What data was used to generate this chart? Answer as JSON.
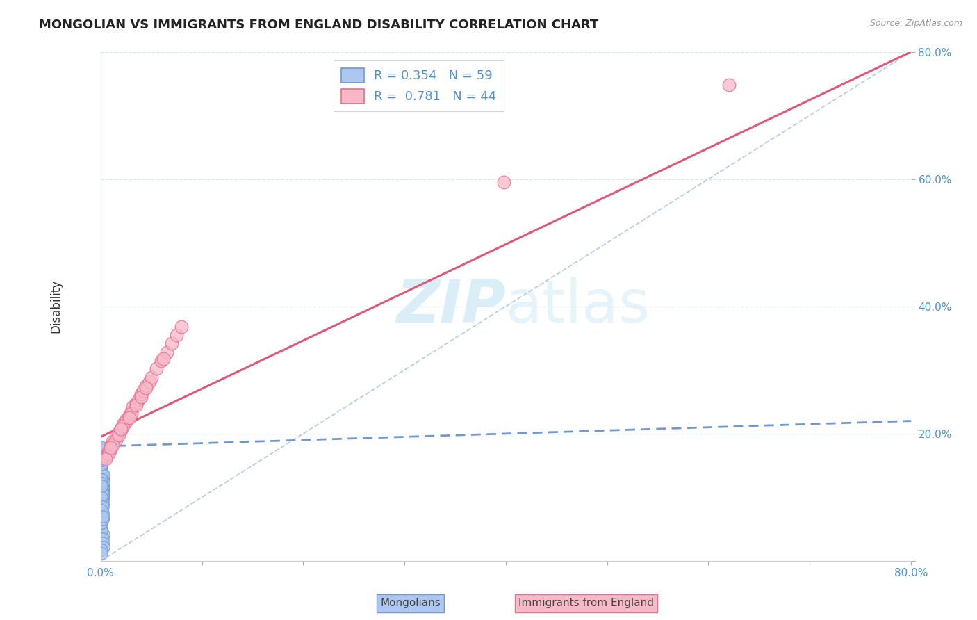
{
  "title": "MONGOLIAN VS IMMIGRANTS FROM ENGLAND DISABILITY CORRELATION CHART",
  "source": "Source: ZipAtlas.com",
  "ylabel": "Disability",
  "xlim": [
    0.0,
    0.8
  ],
  "ylim": [
    0.0,
    0.8
  ],
  "legend_r1": "R = 0.354   N = 59",
  "legend_r2": "R =  0.781   N = 44",
  "color_mongolian_face": "#adc8f0",
  "color_mongolian_edge": "#7098d0",
  "color_england_face": "#f8b8c8",
  "color_england_edge": "#e07090",
  "color_trend_mongolian": "#7098d0",
  "color_trend_england": "#e05878",
  "color_diagonal": "#b0c8e0",
  "color_grid": "#d8e8f0",
  "watermark_color": "#daeef8",
  "mongolian_x": [
    0.001,
    0.002,
    0.001,
    0.003,
    0.001,
    0.002,
    0.003,
    0.001,
    0.002,
    0.001,
    0.002,
    0.001,
    0.003,
    0.002,
    0.001,
    0.002,
    0.001,
    0.003,
    0.002,
    0.001,
    0.002,
    0.001,
    0.002,
    0.001,
    0.003,
    0.001,
    0.002,
    0.001,
    0.002,
    0.003,
    0.001,
    0.002,
    0.001,
    0.002,
    0.001,
    0.003,
    0.002,
    0.001,
    0.002,
    0.001,
    0.002,
    0.001,
    0.003,
    0.002,
    0.001,
    0.002,
    0.001,
    0.002,
    0.003,
    0.001,
    0.002,
    0.001,
    0.002,
    0.001,
    0.003,
    0.002,
    0.001,
    0.002,
    0.001
  ],
  "mongolian_y": [
    0.13,
    0.12,
    0.145,
    0.11,
    0.155,
    0.125,
    0.115,
    0.14,
    0.135,
    0.15,
    0.118,
    0.142,
    0.108,
    0.128,
    0.16,
    0.122,
    0.148,
    0.105,
    0.132,
    0.165,
    0.112,
    0.138,
    0.158,
    0.102,
    0.125,
    0.168,
    0.115,
    0.145,
    0.098,
    0.135,
    0.172,
    0.108,
    0.152,
    0.095,
    0.128,
    0.175,
    0.105,
    0.158,
    0.09,
    0.122,
    0.178,
    0.1,
    0.162,
    0.085,
    0.118,
    0.068,
    0.055,
    0.075,
    0.042,
    0.048,
    0.035,
    0.06,
    0.028,
    0.08,
    0.022,
    0.065,
    0.018,
    0.07,
    0.012
  ],
  "england_x": [
    0.005,
    0.008,
    0.01,
    0.012,
    0.015,
    0.018,
    0.02,
    0.022,
    0.025,
    0.028,
    0.03,
    0.032,
    0.035,
    0.038,
    0.04,
    0.042,
    0.045,
    0.048,
    0.05,
    0.055,
    0.06,
    0.065,
    0.07,
    0.075,
    0.08,
    0.01,
    0.015,
    0.02,
    0.025,
    0.03,
    0.035,
    0.04,
    0.045,
    0.008,
    0.012,
    0.018,
    0.022,
    0.028,
    0.005,
    0.062,
    0.398,
    0.62,
    0.01,
    0.02
  ],
  "england_y": [
    0.165,
    0.172,
    0.18,
    0.188,
    0.195,
    0.202,
    0.208,
    0.215,
    0.222,
    0.228,
    0.235,
    0.242,
    0.248,
    0.255,
    0.262,
    0.268,
    0.275,
    0.282,
    0.288,
    0.302,
    0.315,
    0.328,
    0.342,
    0.355,
    0.368,
    0.175,
    0.19,
    0.205,
    0.218,
    0.232,
    0.245,
    0.258,
    0.272,
    0.168,
    0.182,
    0.198,
    0.212,
    0.225,
    0.16,
    0.318,
    0.595,
    0.748,
    0.178,
    0.208
  ],
  "trend_england_x0": 0.0,
  "trend_england_y0": 0.195,
  "trend_england_x1": 0.8,
  "trend_england_y1": 0.8,
  "trend_mongolian_x0": 0.0,
  "trend_mongolian_y0": 0.18,
  "trend_mongolian_x1": 0.8,
  "trend_mongolian_y1": 0.22
}
